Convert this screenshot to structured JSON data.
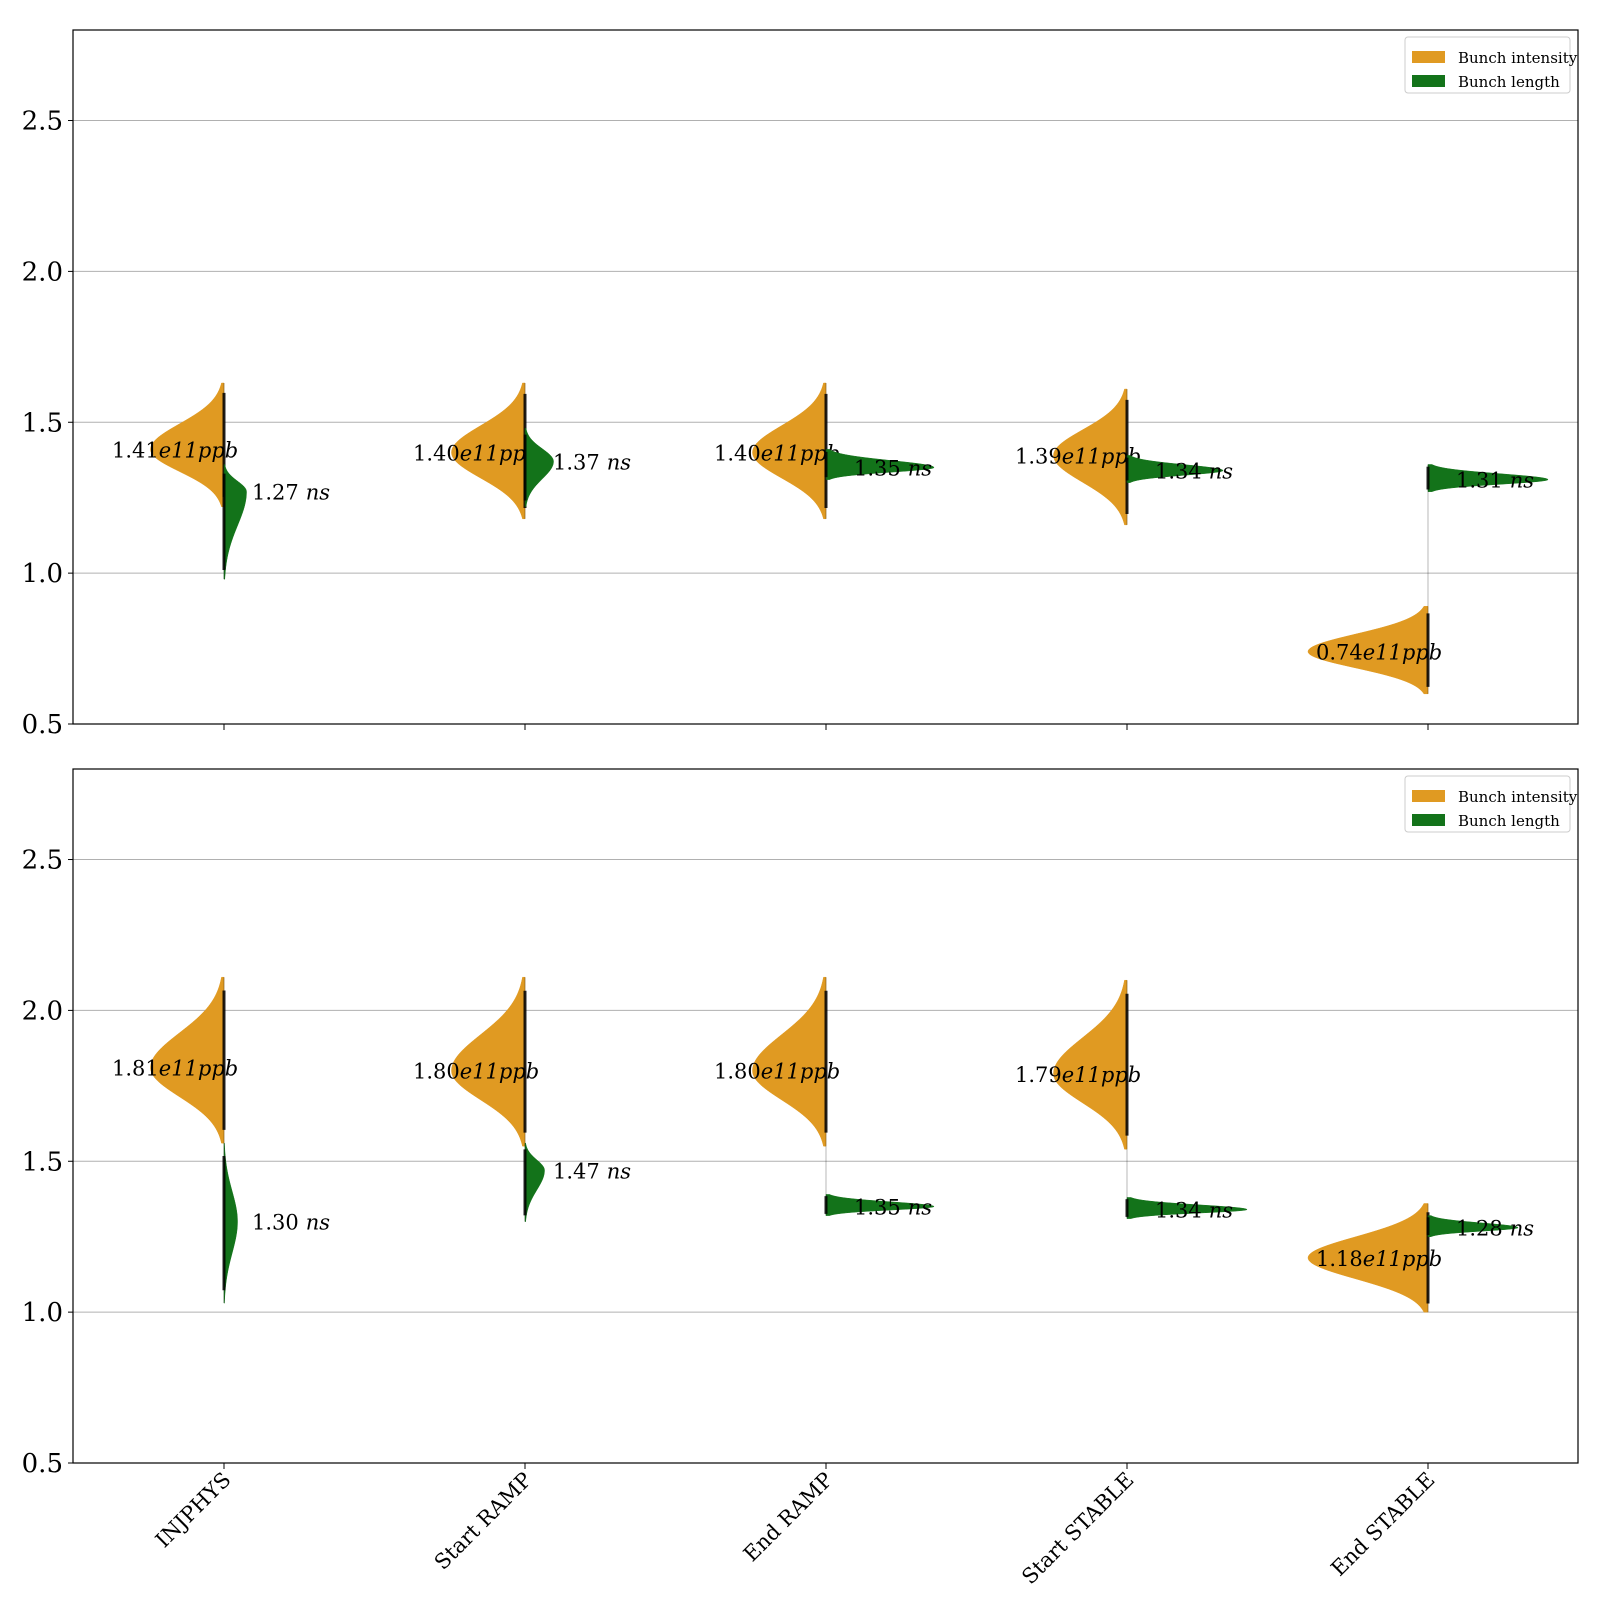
{
  "chart_data": [
    {
      "type": "violin",
      "categories": [
        "INJPHYS",
        "Start RAMP",
        "End RAMP",
        "Start STABLE",
        "End STABLE"
      ],
      "ylim": [
        0.5,
        2.8
      ],
      "yticks": [
        0.5,
        1.0,
        1.5,
        2.0,
        2.5
      ],
      "ytick_labels": [
        "0.5",
        "1.0",
        "1.5",
        "2.0",
        "2.5"
      ],
      "grid": true,
      "legend_position": "top-right",
      "series": [
        {
          "name": "Bunch intensity",
          "side": "left",
          "color": "#e09a22",
          "values": [
            {
              "median": 1.41,
              "min": 1.22,
              "max": 1.63,
              "width": 0.245,
              "label": "1.41e11ppb",
              "label_num": "1.41",
              "label_exp": "e11",
              "label_unit": "ppb"
            },
            {
              "median": 1.4,
              "min": 1.18,
              "max": 1.63,
              "width": 0.245,
              "label": "1.40e11ppb",
              "label_num": "1.40",
              "label_exp": "e11",
              "label_unit": "ppb"
            },
            {
              "median": 1.4,
              "min": 1.18,
              "max": 1.63,
              "width": 0.245,
              "label": "1.40e11ppb",
              "label_num": "1.40",
              "label_exp": "e11",
              "label_unit": "ppb"
            },
            {
              "median": 1.39,
              "min": 1.16,
              "max": 1.61,
              "width": 0.245,
              "label": "1.39e11ppb",
              "label_num": "1.39",
              "label_exp": "e11",
              "label_unit": "ppb"
            },
            {
              "median": 0.74,
              "min": 0.6,
              "max": 0.89,
              "width": 0.4,
              "label": "0.74e11ppb",
              "label_num": "0.74",
              "label_exp": "e11",
              "label_unit": "ppb"
            }
          ]
        },
        {
          "name": "Bunch length",
          "side": "right",
          "color": "#13731a",
          "values": [
            {
              "median": 1.27,
              "min": 0.98,
              "max": 1.36,
              "width": 0.075,
              "label": "1.27 ns",
              "label_num": "1.27",
              "label_unit": "ns"
            },
            {
              "median": 1.37,
              "min": 1.22,
              "max": 1.48,
              "width": 0.095,
              "label": "1.37 ns",
              "label_num": "1.37",
              "label_unit": "ns"
            },
            {
              "median": 1.35,
              "min": 1.31,
              "max": 1.41,
              "width": 0.36,
              "label": "1.35 ns",
              "label_num": "1.35",
              "label_unit": "ns"
            },
            {
              "median": 1.34,
              "min": 1.3,
              "max": 1.39,
              "width": 0.32,
              "label": "1.34 ns",
              "label_num": "1.34",
              "label_unit": "ns"
            },
            {
              "median": 1.31,
              "min": 1.27,
              "max": 1.36,
              "width": 0.4,
              "label": "1.31 ns",
              "label_num": "1.31",
              "label_unit": "ns"
            }
          ]
        }
      ]
    },
    {
      "type": "violin",
      "categories": [
        "INJPHYS",
        "Start RAMP",
        "End RAMP",
        "Start STABLE",
        "End STABLE"
      ],
      "ylim": [
        0.5,
        2.8
      ],
      "yticks": [
        0.5,
        1.0,
        1.5,
        2.0,
        2.5
      ],
      "ytick_labels": [
        "0.5",
        "1.0",
        "1.5",
        "2.0",
        "2.5"
      ],
      "grid": true,
      "legend_position": "top-right",
      "series": [
        {
          "name": "Bunch intensity",
          "side": "left",
          "color": "#e09a22",
          "values": [
            {
              "median": 1.81,
              "min": 1.56,
              "max": 2.11,
              "width": 0.245,
              "label": "1.81e11ppb",
              "label_num": "1.81",
              "label_exp": "e11",
              "label_unit": "ppb"
            },
            {
              "median": 1.8,
              "min": 1.55,
              "max": 2.11,
              "width": 0.245,
              "label": "1.80e11ppb",
              "label_num": "1.80",
              "label_exp": "e11",
              "label_unit": "ppb"
            },
            {
              "median": 1.8,
              "min": 1.55,
              "max": 2.11,
              "width": 0.245,
              "label": "1.80e11ppb",
              "label_num": "1.80",
              "label_exp": "e11",
              "label_unit": "ppb"
            },
            {
              "median": 1.79,
              "min": 1.54,
              "max": 2.1,
              "width": 0.245,
              "label": "1.79e11ppb",
              "label_num": "1.79",
              "label_exp": "e11",
              "label_unit": "ppb"
            },
            {
              "median": 1.18,
              "min": 1.0,
              "max": 1.36,
              "width": 0.4,
              "label": "1.18e11ppb",
              "label_num": "1.18",
              "label_exp": "e11",
              "label_unit": "ppb"
            }
          ]
        },
        {
          "name": "Bunch length",
          "side": "right",
          "color": "#13731a",
          "values": [
            {
              "median": 1.3,
              "min": 1.03,
              "max": 1.56,
              "width": 0.045,
              "label": "1.30 ns",
              "label_num": "1.30",
              "label_unit": "ns"
            },
            {
              "median": 1.47,
              "min": 1.3,
              "max": 1.56,
              "width": 0.065,
              "label": "1.47 ns",
              "label_num": "1.47",
              "label_unit": "ns"
            },
            {
              "median": 1.35,
              "min": 1.32,
              "max": 1.39,
              "width": 0.36,
              "label": "1.35 ns",
              "label_num": "1.35",
              "label_unit": "ns"
            },
            {
              "median": 1.34,
              "min": 1.31,
              "max": 1.38,
              "width": 0.4,
              "label": "1.34 ns",
              "label_num": "1.34",
              "label_unit": "ns"
            },
            {
              "median": 1.28,
              "min": 1.25,
              "max": 1.32,
              "width": 0.3,
              "label": "1.28 ns",
              "label_num": "1.28",
              "label_unit": "ns"
            }
          ]
        }
      ]
    }
  ]
}
